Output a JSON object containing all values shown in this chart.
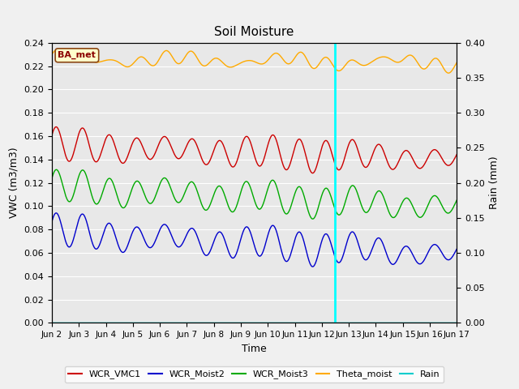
{
  "title": "Soil Moisture",
  "ylabel_left": "VWC (m3/m3)",
  "ylabel_right": "Rain (mm)",
  "xlabel": "Time",
  "annotation": "BA_met",
  "x_tick_labels": [
    "Jun 2",
    "Jun 3",
    "Jun 4",
    "Jun 5",
    "Jun 6",
    "Jun 7",
    "Jun 8",
    "Jun 9",
    "Jun 10",
    "Jun 11",
    "Jun 12",
    "Jun 13",
    "Jun 14",
    "Jun 15",
    "Jun 16",
    "Jun 17"
  ],
  "vline_x": 10.5,
  "ylim_left": [
    0.0,
    0.24
  ],
  "ylim_right": [
    0.0,
    0.4
  ],
  "yticks_left": [
    0.0,
    0.02,
    0.04,
    0.06,
    0.08,
    0.1,
    0.12,
    0.14,
    0.16,
    0.18,
    0.2,
    0.22,
    0.24
  ],
  "yticks_right": [
    0.0,
    0.05,
    0.1,
    0.15,
    0.2,
    0.25,
    0.3,
    0.35,
    0.4
  ],
  "bg_color": "#e8e8e8",
  "grid_color": "#ffffff",
  "colors": {
    "WCR_VMC1": "#cc0000",
    "WCR_Moist2": "#0000cc",
    "WCR_Moist3": "#00aa00",
    "Theta_moist": "#ffaa00",
    "Rain": "#00cccc"
  },
  "legend_labels": [
    "WCR_VMC1",
    "WCR_Moist2",
    "WCR_Moist3",
    "Theta_moist",
    "Rain"
  ],
  "figsize": [
    6.4,
    4.8
  ],
  "dpi": 100
}
